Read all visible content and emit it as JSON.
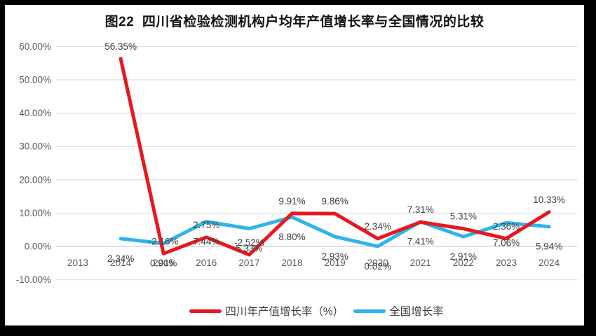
{
  "title": "图22  四川省检验检测机构户均年产值增长率与全国情况的比较",
  "chart_data": {
    "type": "line",
    "title": "图22  四川省检验检测机构户均年产值增长率与全国情况的比较",
    "categories": [
      "2013",
      "2014",
      "2015",
      "2016",
      "2017",
      "2018",
      "2019",
      "2020",
      "2021",
      "2022",
      "2023",
      "2024"
    ],
    "series": [
      {
        "name": "四川年产值增长率（%）",
        "color": "#e8171f",
        "label_position": "above",
        "values": [
          null,
          56.35,
          -2.16,
          2.75,
          -2.52,
          9.91,
          9.86,
          2.34,
          7.31,
          5.31,
          2.36,
          10.33
        ]
      },
      {
        "name": "全国增长率",
        "color": "#2eb4e8",
        "label_position": "below",
        "values": [
          null,
          2.34,
          0.9,
          7.44,
          5.33,
          8.8,
          2.93,
          0.02,
          7.41,
          2.91,
          7.06,
          5.94
        ]
      }
    ],
    "yticks": [
      60,
      50,
      40,
      30,
      20,
      10,
      0,
      -10
    ],
    "ytick_labels": [
      "60.00%",
      "50.00%",
      "40.00%",
      "30.00%",
      "20.00%",
      "10.00%",
      "0.00%",
      "-10.00%"
    ],
    "ylim": [
      -10,
      60
    ],
    "xlabel": "",
    "ylabel": "",
    "grid": true,
    "data_labels": true,
    "legend_position": "bottom",
    "colors": {
      "grid": "#d9d9d9",
      "zero_line": "#c3c3c3",
      "axis_text": "#595959",
      "label_text": "#404040",
      "background": "#ffffff",
      "frame": "#000000"
    }
  }
}
